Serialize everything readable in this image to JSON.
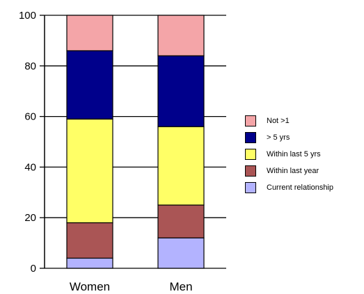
{
  "chart_data": {
    "type": "bar",
    "stacked": true,
    "categories": [
      "Women",
      "Men"
    ],
    "ylim": [
      0,
      100
    ],
    "yticks": [
      0,
      20,
      40,
      60,
      80,
      100
    ],
    "ytick_labels": [
      "0",
      "20",
      "40",
      "60",
      "80",
      "100"
    ],
    "grid": false,
    "legend_position": "right",
    "series": [
      {
        "name": "Current relationship",
        "color": "#b3b3ff",
        "values": [
          4,
          12
        ]
      },
      {
        "name": "Within last year",
        "color": "#aa5555",
        "values": [
          14,
          13
        ]
      },
      {
        "name": "Within last 5 yrs",
        "color": "#ffff66",
        "values": [
          41,
          31
        ]
      },
      {
        "name": "> 5 yrs",
        "color": "#00008b",
        "values": [
          27,
          28
        ]
      },
      {
        "name": "Not >1",
        "color": "#f4a5a8",
        "values": [
          14,
          16
        ]
      }
    ]
  }
}
